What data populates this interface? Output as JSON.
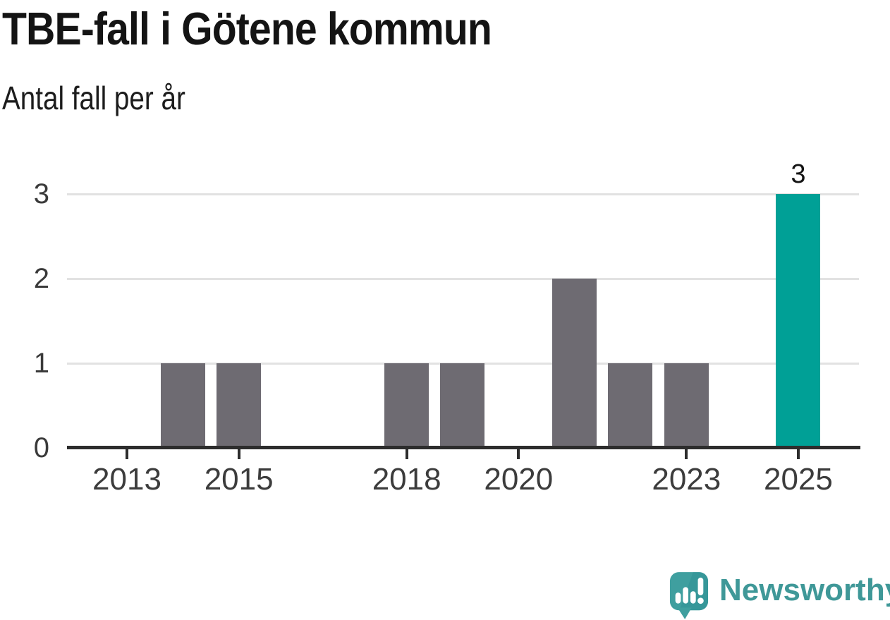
{
  "header": {
    "title": "TBE-fall i Götene kommun",
    "subtitle": "Antal fall per år"
  },
  "chart_data": {
    "type": "bar",
    "title": "TBE-fall i Götene kommun",
    "subtitle": "Antal fall per år",
    "xlabel": "",
    "ylabel": "",
    "categories": [
      "2013",
      "2014",
      "2015",
      "2016",
      "2017",
      "2018",
      "2019",
      "2020",
      "2021",
      "2022",
      "2023",
      "2024",
      "2025"
    ],
    "values": [
      0,
      1,
      1,
      0,
      0,
      1,
      1,
      0,
      2,
      1,
      1,
      0,
      3
    ],
    "highlight_category": "2025",
    "annotations": [
      {
        "category": "2025",
        "text": "3"
      }
    ],
    "x_tick_labels": [
      "2013",
      "2015",
      "2018",
      "2020",
      "2023",
      "2025"
    ],
    "y_tick_labels": [
      "0",
      "1",
      "2",
      "3"
    ],
    "ylim": [
      0,
      3
    ],
    "grid": true,
    "legend": "none"
  },
  "colors": {
    "bar": "#6e6b72",
    "highlight": "#00a096",
    "grid": "#e2e2e2",
    "axis": "#2d2d2d",
    "tick_label": "#3c3c3c",
    "value_label": "#141414",
    "logo_mark": "#3f9f9f",
    "logo_mark_shade": "#2f9093",
    "logo_text": "#3f9898"
  },
  "branding": {
    "name": "Newsworthy",
    "logo_icon": "speech-bubble-bar-chart"
  }
}
